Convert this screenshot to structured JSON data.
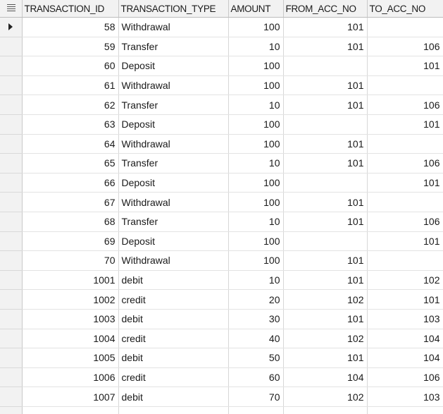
{
  "grid": {
    "columns": [
      "TRANSACTION_ID",
      "TRANSACTION_TYPE",
      "AMOUNT",
      "FROM_ACC_NO",
      "TO_ACC_NO"
    ],
    "current_row": 0,
    "rows": [
      {
        "id": "58",
        "type": "Withdrawal",
        "amount": "100",
        "from": "101",
        "to": ""
      },
      {
        "id": "59",
        "type": "Transfer",
        "amount": "10",
        "from": "101",
        "to": "106"
      },
      {
        "id": "60",
        "type": "Deposit",
        "amount": "100",
        "from": "",
        "to": "101"
      },
      {
        "id": "61",
        "type": "Withdrawal",
        "amount": "100",
        "from": "101",
        "to": ""
      },
      {
        "id": "62",
        "type": "Transfer",
        "amount": "10",
        "from": "101",
        "to": "106"
      },
      {
        "id": "63",
        "type": "Deposit",
        "amount": "100",
        "from": "",
        "to": "101"
      },
      {
        "id": "64",
        "type": "Withdrawal",
        "amount": "100",
        "from": "101",
        "to": ""
      },
      {
        "id": "65",
        "type": "Transfer",
        "amount": "10",
        "from": "101",
        "to": "106"
      },
      {
        "id": "66",
        "type": "Deposit",
        "amount": "100",
        "from": "",
        "to": "101"
      },
      {
        "id": "67",
        "type": "Withdrawal",
        "amount": "100",
        "from": "101",
        "to": ""
      },
      {
        "id": "68",
        "type": "Transfer",
        "amount": "10",
        "from": "101",
        "to": "106"
      },
      {
        "id": "69",
        "type": "Deposit",
        "amount": "100",
        "from": "",
        "to": "101"
      },
      {
        "id": "70",
        "type": "Withdrawal",
        "amount": "100",
        "from": "101",
        "to": ""
      },
      {
        "id": "1001",
        "type": "debit",
        "amount": "10",
        "from": "101",
        "to": "102"
      },
      {
        "id": "1002",
        "type": "credit",
        "amount": "20",
        "from": "102",
        "to": "101"
      },
      {
        "id": "1003",
        "type": "debit",
        "amount": "30",
        "from": "101",
        "to": "103"
      },
      {
        "id": "1004",
        "type": "credit",
        "amount": "40",
        "from": "102",
        "to": "104"
      },
      {
        "id": "1005",
        "type": "debit",
        "amount": "50",
        "from": "101",
        "to": "104"
      },
      {
        "id": "1006",
        "type": "credit",
        "amount": "60",
        "from": "104",
        "to": "106"
      },
      {
        "id": "1007",
        "type": "debit",
        "amount": "70",
        "from": "102",
        "to": "103"
      },
      {
        "id": "",
        "type": "",
        "amount": "",
        "from": "",
        "to": ""
      }
    ]
  },
  "icons": {
    "grid_menu": "grid-menu-icon",
    "row_pointer": "row-pointer-icon"
  }
}
